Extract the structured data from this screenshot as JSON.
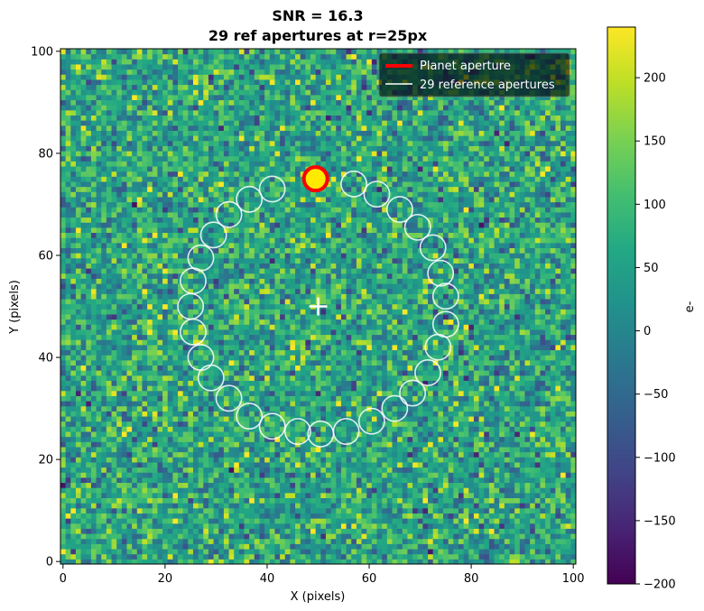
{
  "chart_data": {
    "type": "heatmap",
    "title": "SNR = 16.3",
    "subtitle": "29 ref apertures at r=25px",
    "xlabel": "X (pixels)",
    "ylabel": "Y (pixels)",
    "colorbar_label": "e-",
    "xlim": [
      -0.5,
      100.5
    ],
    "ylim": [
      -0.5,
      100.5
    ],
    "x_ticks": [
      0,
      20,
      40,
      60,
      80,
      100
    ],
    "y_ticks": [
      0,
      20,
      40,
      60,
      80,
      100
    ],
    "clim": [
      -200,
      240
    ],
    "colorbar_ticks": [
      -200,
      -150,
      -100,
      -50,
      0,
      50,
      100,
      150,
      200
    ],
    "colormap": "viridis",
    "grid": false,
    "legend_position": "top-right",
    "center": {
      "x": 50,
      "y": 50,
      "marker": "+",
      "color": "#ffffff"
    },
    "planet_aperture": {
      "label": "Planet aperture",
      "x": 49.5,
      "y": 75,
      "radius": 2.3,
      "edge_color": "#ff0000",
      "face_color": "#ffea00"
    },
    "reference_apertures": {
      "label": "29 reference apertures",
      "count": 29,
      "separation_px": 25,
      "radius": 2.5,
      "edge_color": "#ffffff",
      "centers": [
        [
          57,
          74
        ],
        [
          61.5,
          72
        ],
        [
          66,
          69
        ],
        [
          69.5,
          65.5
        ],
        [
          72.5,
          61.5
        ],
        [
          74,
          56.5
        ],
        [
          75,
          52
        ],
        [
          75,
          46.5
        ],
        [
          73.5,
          42
        ],
        [
          71.5,
          37
        ],
        [
          68.5,
          33
        ],
        [
          65,
          30
        ],
        [
          60.5,
          27.5
        ],
        [
          55.5,
          25.5
        ],
        [
          50.5,
          25
        ],
        [
          46,
          25.5
        ],
        [
          41,
          26.5
        ],
        [
          36.5,
          28.5
        ],
        [
          32.5,
          32
        ],
        [
          29,
          36
        ],
        [
          27,
          40
        ],
        [
          25.5,
          45
        ],
        [
          25,
          50
        ],
        [
          25.5,
          55
        ],
        [
          27,
          59.5
        ],
        [
          29.5,
          64
        ],
        [
          32.5,
          68
        ],
        [
          36.5,
          71
        ],
        [
          41,
          73
        ]
      ]
    },
    "noise_level": 70,
    "background_level": 55,
    "planet_peak": 220
  }
}
